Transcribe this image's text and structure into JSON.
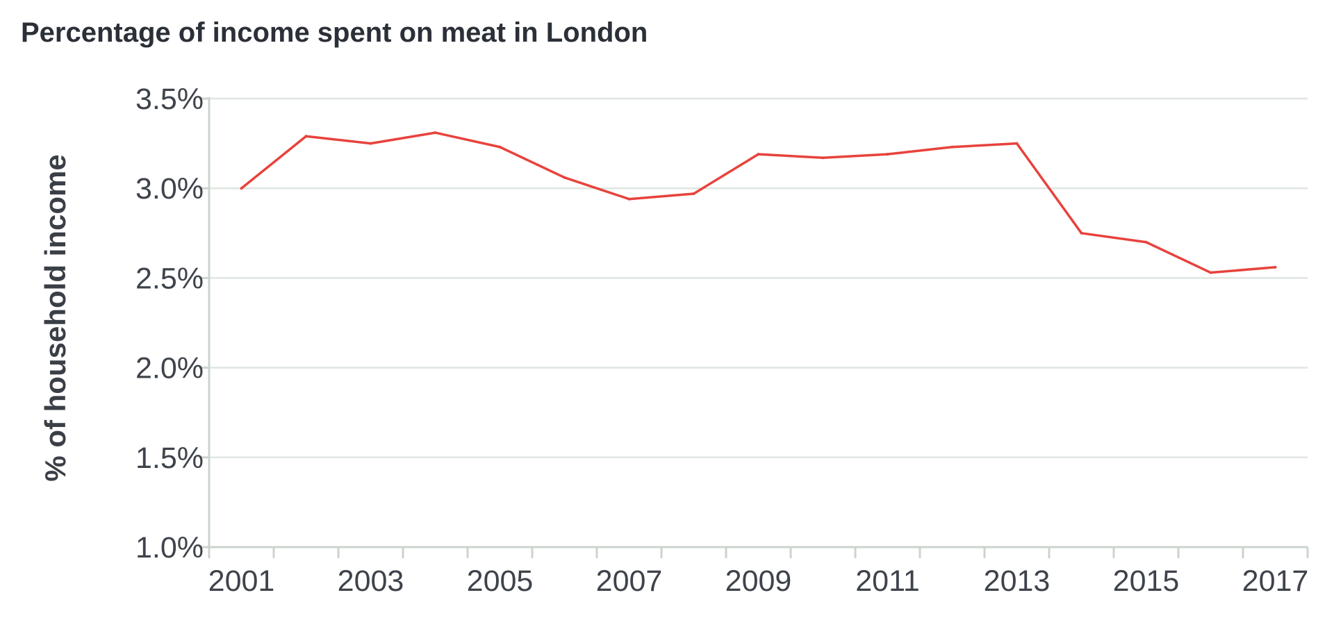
{
  "chart_data": {
    "type": "line",
    "title": "Percentage of income spent on meat in London",
    "ylabel": "% of household income",
    "xlabel": "",
    "x": [
      2001,
      2002,
      2003,
      2004,
      2005,
      2006,
      2007,
      2008,
      2009,
      2010,
      2011,
      2012,
      2013,
      2014,
      2015,
      2016,
      2017
    ],
    "series": [
      {
        "values": [
          3.0,
          3.29,
          3.25,
          3.31,
          3.23,
          3.06,
          2.94,
          2.97,
          3.19,
          3.17,
          3.19,
          3.23,
          3.25,
          2.75,
          2.7,
          2.53,
          2.56
        ],
        "color": "#e8423c"
      }
    ],
    "xlim": [
      2000.5,
      2017.5
    ],
    "ylim": [
      1.0,
      3.5
    ],
    "yticks": [
      1.0,
      1.5,
      2.0,
      2.5,
      3.0,
      3.5
    ],
    "ytick_labels": [
      "1.0%",
      "1.5%",
      "2.0%",
      "2.5%",
      "3.0%",
      "3.5%"
    ],
    "xticks": [
      2001,
      2003,
      2005,
      2007,
      2009,
      2011,
      2013,
      2015,
      2017
    ],
    "xtick_labels": [
      "2001",
      "2003",
      "2005",
      "2007",
      "2009",
      "2011",
      "2013",
      "2015",
      "2017"
    ],
    "grid": true,
    "legend": "none"
  }
}
